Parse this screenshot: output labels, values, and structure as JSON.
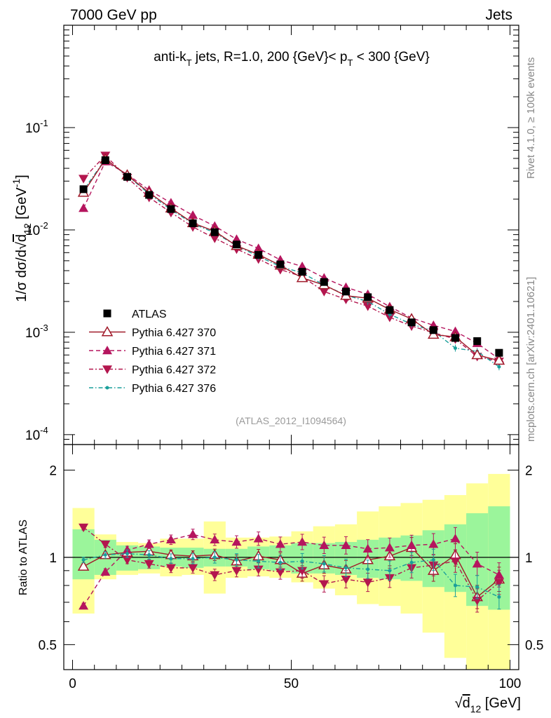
{
  "header": {
    "left": "7000 GeV pp",
    "right": "Jets"
  },
  "side_labels": {
    "rivet": "Rivet 4.1.0, ≥ 100k events",
    "mcplots": "mcplots.cern.ch [arXiv:2401.10621]"
  },
  "analysis_id": "(ATLAS_2012_I1094564)",
  "colors": {
    "data": "#000000",
    "p370": "#a01a2a",
    "p371": "#b5155e",
    "p372": "#b3164e",
    "p376": "#1a9f9a",
    "band_inner": "#9bf59b",
    "band_outer": "#ffff99"
  },
  "chart_data": [
    {
      "type": "line",
      "panel": "main",
      "title": "anti-kT jets, R=1.0, 200 {GeV}< pT < 300 {GeV}",
      "title_parts": [
        "anti-k",
        "T",
        " jets, R=1.0, 200 {GeV}< p",
        "T",
        " < 300 {GeV}"
      ],
      "ylabel": "1/σ dσ/d√d12 [GeV-1]",
      "ylabel_parts": [
        "1/σ dσ/d",
        "√",
        "d",
        "12",
        " [GeV",
        "-1",
        "]"
      ],
      "yscale": "log",
      "ylim": [
        8e-05,
        1.0
      ],
      "xlim": [
        -2,
        102
      ],
      "yticks": [
        {
          "value": 0.1,
          "base": "10",
          "exp": "-1"
        },
        {
          "value": 0.01,
          "base": "10",
          "exp": "-2"
        },
        {
          "value": 0.001,
          "base": "10",
          "exp": "-3"
        },
        {
          "value": 0.0001,
          "base": "10",
          "exp": "-4"
        }
      ],
      "legend": [
        "ATLAS",
        "Pythia 6.427 370",
        "Pythia 6.427 371",
        "Pythia 6.427 372",
        "Pythia 6.427 376"
      ],
      "x": [
        2.5,
        7.5,
        12.5,
        17.5,
        22.5,
        27.5,
        32.5,
        37.5,
        42.5,
        47.5,
        52.5,
        57.5,
        62.5,
        67.5,
        72.5,
        77.5,
        82.5,
        87.5,
        92.5,
        97.5
      ],
      "series": [
        {
          "name": "ATLAS",
          "marker": "square",
          "values": [
            0.025,
            0.048,
            0.033,
            0.022,
            0.016,
            0.0116,
            0.0095,
            0.0072,
            0.0057,
            0.0046,
            0.0039,
            0.0031,
            0.0025,
            0.0022,
            0.00165,
            0.00125,
            0.00105,
            0.00088,
            0.00082,
            0.00063
          ]
        },
        {
          "name": "Pythia 6.427 370",
          "marker": "open-triangle-up",
          "values": [
            0.0232,
            0.049,
            0.0343,
            0.0231,
            0.0163,
            0.0117,
            0.0097,
            0.007,
            0.00575,
            0.0045,
            0.0034,
            0.0029,
            0.00228,
            0.00215,
            0.00167,
            0.00135,
            0.00095,
            0.0009,
            0.0006,
            0.00053
          ]
        },
        {
          "name": "Pythia 6.427 371",
          "marker": "triangle-up",
          "values": [
            0.0163,
            0.0465,
            0.035,
            0.0245,
            0.0184,
            0.0139,
            0.0109,
            0.0081,
            0.0066,
            0.0051,
            0.0044,
            0.0034,
            0.00275,
            0.00235,
            0.00178,
            0.00138,
            0.00117,
            0.00102,
            0.00078,
            0.00055
          ]
        },
        {
          "name": "Pythia 6.427 372",
          "marker": "triangle-down",
          "values": [
            0.0318,
            0.0535,
            0.0325,
            0.0208,
            0.0148,
            0.0107,
            0.0083,
            0.0065,
            0.0052,
            0.0041,
            0.0035,
            0.0025,
            0.0021,
            0.0018,
            0.0014,
            0.00115,
            0.00099,
            0.00086,
            0.00058,
            0.00052
          ]
        },
        {
          "name": "Pythia 6.427 376",
          "marker": "dot",
          "values": [
            0.0245,
            0.049,
            0.034,
            0.0225,
            0.0158,
            0.0115,
            0.0094,
            0.007,
            0.0055,
            0.0044,
            0.0038,
            0.0029,
            0.0023,
            0.002,
            0.0015,
            0.0012,
            0.00103,
            0.0007,
            0.00065,
            0.00046
          ]
        }
      ]
    },
    {
      "type": "line",
      "panel": "ratio",
      "ylabel": "Ratio to ATLAS",
      "xlabel": "√d12 [GeV]",
      "xlabel_parts": [
        "√",
        "d",
        "12",
        " [GeV]"
      ],
      "yscale": "log",
      "ylim": [
        0.41,
        2.45
      ],
      "xlim": [
        -2,
        102
      ],
      "xticks": [
        "0",
        "50",
        "100"
      ],
      "xtick_values": [
        0,
        50,
        100
      ],
      "yticks": [
        "0.5",
        "1",
        "2"
      ],
      "ytick_values": [
        0.5,
        1,
        2
      ],
      "x": [
        2.5,
        7.5,
        12.5,
        17.5,
        22.5,
        27.5,
        32.5,
        37.5,
        42.5,
        47.5,
        52.5,
        57.5,
        62.5,
        67.5,
        72.5,
        77.5,
        82.5,
        87.5,
        92.5,
        97.5
      ],
      "band_inner": {
        "low": [
          0.84,
          0.87,
          0.9,
          0.91,
          0.93,
          0.92,
          0.93,
          0.93,
          0.91,
          0.9,
          0.88,
          0.88,
          0.87,
          0.85,
          0.84,
          0.83,
          0.79,
          0.76,
          0.68,
          0.66
        ],
        "high": [
          1.25,
          1.15,
          1.1,
          1.09,
          1.08,
          1.08,
          1.07,
          1.07,
          1.09,
          1.1,
          1.12,
          1.12,
          1.13,
          1.15,
          1.17,
          1.19,
          1.24,
          1.3,
          1.42,
          1.5
        ]
      },
      "band_outer": {
        "low": [
          0.64,
          0.84,
          0.87,
          0.88,
          0.86,
          0.87,
          0.75,
          0.85,
          0.86,
          0.85,
          0.82,
          0.78,
          0.74,
          0.69,
          0.68,
          0.64,
          0.55,
          0.45,
          0.41,
          0.41
        ],
        "high": [
          1.48,
          1.2,
          1.13,
          1.12,
          1.16,
          1.16,
          1.33,
          1.17,
          1.17,
          1.18,
          1.23,
          1.28,
          1.3,
          1.44,
          1.5,
          1.54,
          1.58,
          1.64,
          1.8,
          1.94
        ]
      },
      "series": [
        {
          "name": "Pythia 6.427 370",
          "values": [
            0.93,
            1.02,
            1.04,
            1.05,
            1.02,
            1.01,
            1.02,
            0.97,
            1.01,
            0.98,
            0.88,
            0.94,
            0.91,
            0.98,
            1.01,
            1.08,
            0.9,
            1.02,
            0.73,
            0.84
          ]
        },
        {
          "name": "Pythia 6.427 371",
          "values": [
            0.68,
            0.89,
            1.06,
            1.11,
            1.15,
            1.2,
            1.15,
            1.13,
            1.16,
            1.11,
            1.13,
            1.1,
            1.1,
            1.07,
            1.08,
            1.1,
            1.11,
            1.16,
            0.95,
            0.87
          ]
        },
        {
          "name": "Pythia 6.427 372",
          "values": [
            1.27,
            1.11,
            0.98,
            0.95,
            0.92,
            0.92,
            0.87,
            0.9,
            0.91,
            0.89,
            0.9,
            0.81,
            0.84,
            0.82,
            0.85,
            0.92,
            0.94,
            0.97,
            0.71,
            0.82
          ]
        },
        {
          "name": "Pythia 6.427 376",
          "values": [
            0.98,
            1.02,
            1.03,
            1.02,
            0.99,
            0.99,
            1.0,
            0.98,
            0.97,
            0.96,
            0.97,
            0.95,
            0.92,
            0.91,
            0.9,
            0.96,
            0.98,
            0.8,
            0.79,
            0.73
          ]
        }
      ]
    }
  ]
}
